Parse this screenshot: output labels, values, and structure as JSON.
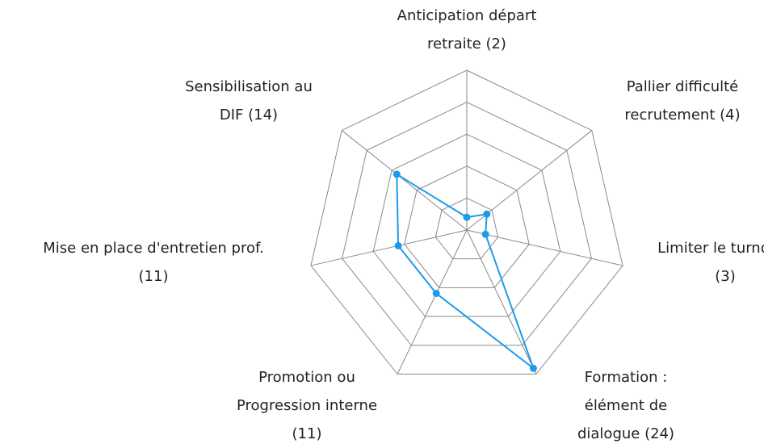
{
  "chart_data": {
    "type": "radar",
    "categories": [
      [
        "Anticipation départ",
        "retraite (2)"
      ],
      [
        "Pallier difficulté",
        "recrutement (4)"
      ],
      [
        "Limiter le turnover",
        "(3)"
      ],
      [
        "Formation :",
        "élément de",
        "dialogue (24)"
      ],
      [
        "Promotion ou",
        "Progression interne",
        "(11)"
      ],
      [
        "Mise en place d'entretien prof.",
        "(11)"
      ],
      [
        "Sensibilisation au",
        "DIF (14)"
      ]
    ],
    "values": [
      2,
      4,
      3,
      24,
      11,
      11,
      14
    ],
    "color": "#1e9be8",
    "rlim": [
      0,
      25
    ],
    "rticks": [
      0,
      5,
      10,
      15,
      20,
      25
    ],
    "grid": true
  }
}
